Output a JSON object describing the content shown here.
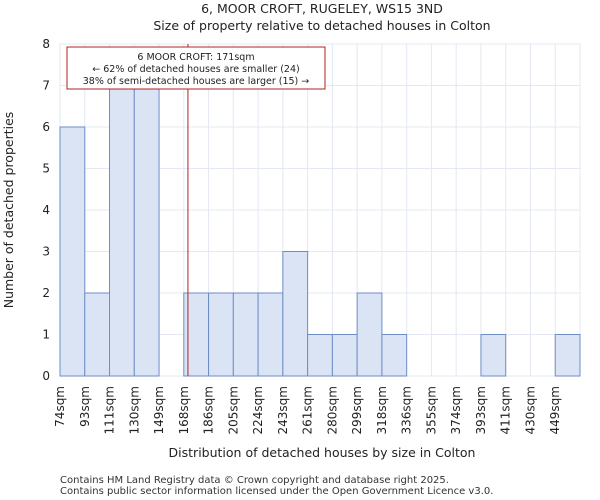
{
  "chart_data": {
    "type": "bar",
    "title": "6, MOOR CROFT, RUGELEY, WS15 3ND",
    "subtitle": "Size of property relative to detached houses in Colton",
    "xlabel": "Distribution of detached houses by size in Colton",
    "ylabel": "Number of detached properties",
    "categories": [
      "74sqm",
      "93sqm",
      "111sqm",
      "130sqm",
      "149sqm",
      "168sqm",
      "186sqm",
      "205sqm",
      "224sqm",
      "243sqm",
      "261sqm",
      "280sqm",
      "299sqm",
      "318sqm",
      "336sqm",
      "355sqm",
      "374sqm",
      "393sqm",
      "411sqm",
      "430sqm",
      "449sqm"
    ],
    "values": [
      6,
      2,
      7,
      7,
      0,
      2,
      2,
      2,
      2,
      3,
      1,
      1,
      2,
      1,
      0,
      0,
      0,
      1,
      0,
      0,
      1
    ],
    "yticks": [
      0,
      1,
      2,
      3,
      4,
      5,
      6,
      7,
      8
    ],
    "ylim": [
      0,
      8
    ],
    "grid": true,
    "property_marker": {
      "value_sqm": 171,
      "label": "6 MOOR CROFT: 171sqm"
    },
    "annotation": {
      "line1": "6 MOOR CROFT: 171sqm",
      "line2": "← 62% of detached houses are smaller (24)",
      "line3": "38% of semi-detached houses are larger (15) →"
    },
    "colors": {
      "bar_fill": "#dbe4f5",
      "bar_stroke": "#6e8ec6",
      "marker": "#b22222",
      "grid": "#e3e8f2"
    }
  },
  "footer": {
    "line1": "Contains HM Land Registry data © Crown copyright and database right 2025.",
    "line2": "Contains public sector information licensed under the Open Government Licence v3.0."
  }
}
